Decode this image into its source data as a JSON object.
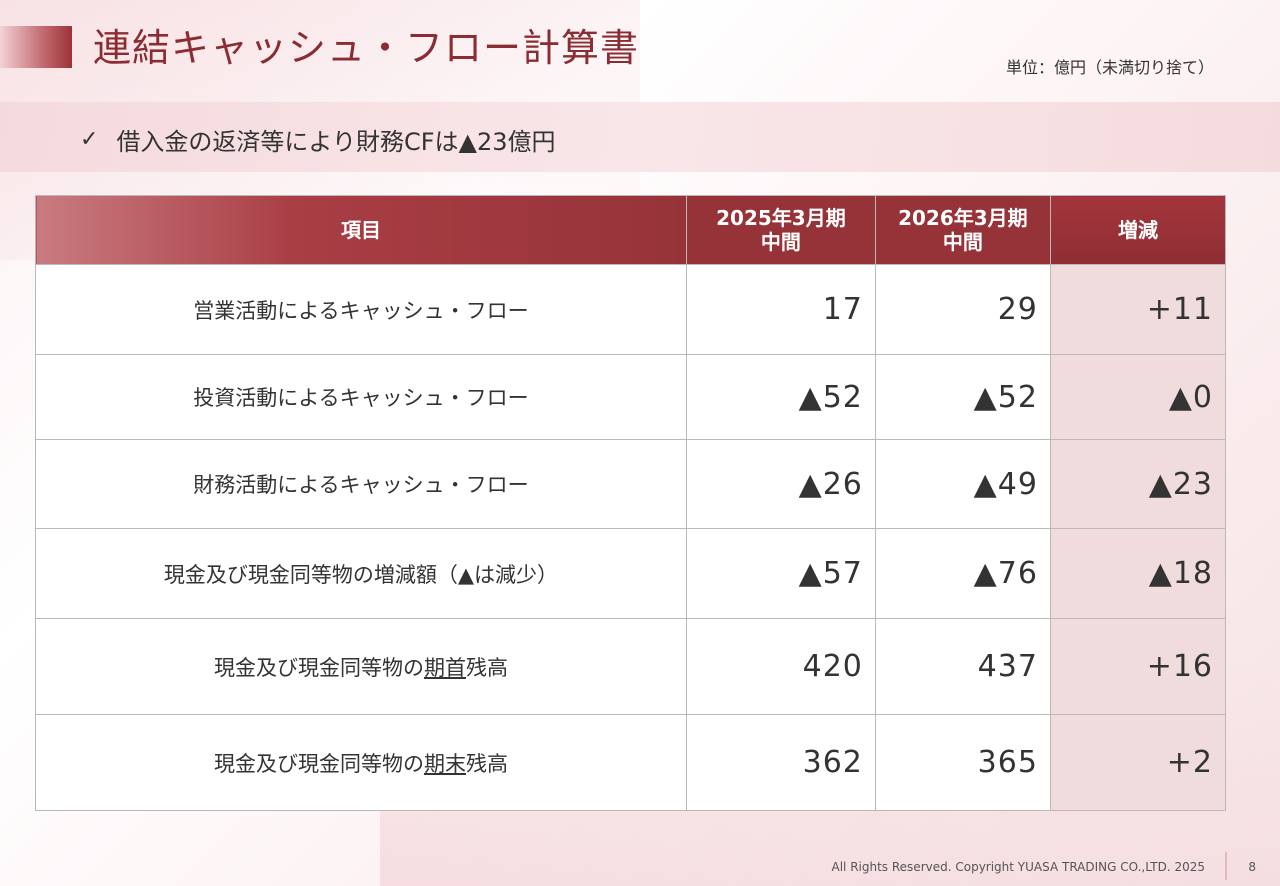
{
  "title": "連結キャッシュ・フロー計算書",
  "unit_note": "単位：億円（未満切り捨て）",
  "key_point": "借入金の返済等により財務CFは▲23億円",
  "table": {
    "headers": {
      "item": "項目",
      "period_a_line1": "2025年3月期",
      "period_a_line2": "中間",
      "period_b_line1": "2026年3月期",
      "period_b_line2": "中間",
      "diff": "増減"
    },
    "rows": [
      {
        "label": "営業活動によるキャッシュ・フロー",
        "a": "17",
        "b": "29",
        "diff": "+11"
      },
      {
        "label": "投資活動によるキャッシュ・フロー",
        "a": "▲52",
        "b": "▲52",
        "diff": "▲0"
      },
      {
        "label": "財務活動によるキャッシュ・フロー",
        "a": "▲26",
        "b": "▲49",
        "diff": "▲23"
      },
      {
        "label": "現金及び現金同等物の増減額（▲は減少）",
        "a": "▲57",
        "b": "▲76",
        "diff": "▲18"
      },
      {
        "label_pre": "現金及び現金同等物の",
        "label_ul": "期首",
        "label_post": "残高",
        "a": "420",
        "b": "437",
        "diff": "+16"
      },
      {
        "label_pre": "現金及び現金同等物の",
        "label_ul": "期末",
        "label_post": "残高",
        "a": "362",
        "b": "365",
        "diff": "+2"
      }
    ]
  },
  "footer": {
    "copyright": "All Rights Reserved. Copyright  YUASA TRADING CO.,LTD. 2025",
    "page_number": "8"
  },
  "colors": {
    "brand": "#963339",
    "title_text": "#8a2c32",
    "diff_column_bg": "#f1dcdd"
  }
}
